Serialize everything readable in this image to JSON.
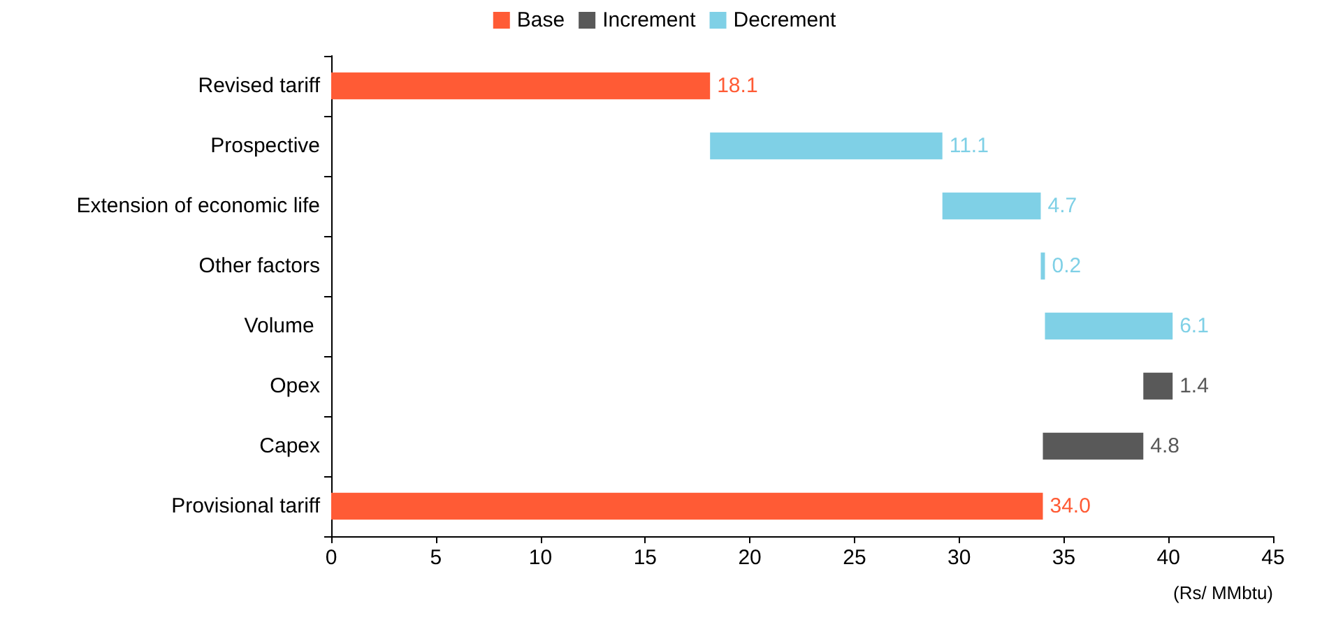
{
  "chart_data": {
    "type": "bar",
    "orientation": "horizontal",
    "xlabel": "(Rs/ MMbtu)",
    "categories": [
      "Revised tariff",
      "Prospective",
      "Extension of economic life",
      "Other factors",
      "Volume ",
      "Opex",
      "Capex",
      "Provisional tariff"
    ],
    "series": [
      {
        "name": "Base",
        "color": "#ff5b35",
        "values": [
          18.1,
          null,
          null,
          null,
          null,
          null,
          null,
          34.0
        ],
        "base": [
          0,
          null,
          null,
          null,
          null,
          null,
          null,
          0
        ],
        "value_labels": [
          "18.1",
          null,
          null,
          null,
          null,
          null,
          null,
          "34.0"
        ]
      },
      {
        "name": "Increment",
        "color": "#595959",
        "values": [
          null,
          null,
          null,
          null,
          null,
          1.4,
          4.8,
          null
        ],
        "base": [
          null,
          null,
          null,
          null,
          null,
          38.8,
          34.0,
          null
        ],
        "value_labels": [
          null,
          null,
          null,
          null,
          null,
          "1.4",
          "4.8",
          null
        ]
      },
      {
        "name": "Decrement",
        "color": "#7fd0e6",
        "values": [
          null,
          11.1,
          4.7,
          0.2,
          6.1,
          null,
          null,
          null
        ],
        "base": [
          null,
          18.1,
          29.2,
          33.9,
          34.1,
          null,
          null,
          null
        ],
        "value_labels": [
          null,
          "11.1",
          "4.7",
          "0.2",
          "6.1",
          null,
          null,
          null
        ]
      }
    ],
    "xlim": [
      0,
      45
    ],
    "xticks": [
      0,
      5,
      10,
      15,
      20,
      25,
      30,
      35,
      40,
      45
    ],
    "grid": false,
    "legend": "top"
  }
}
